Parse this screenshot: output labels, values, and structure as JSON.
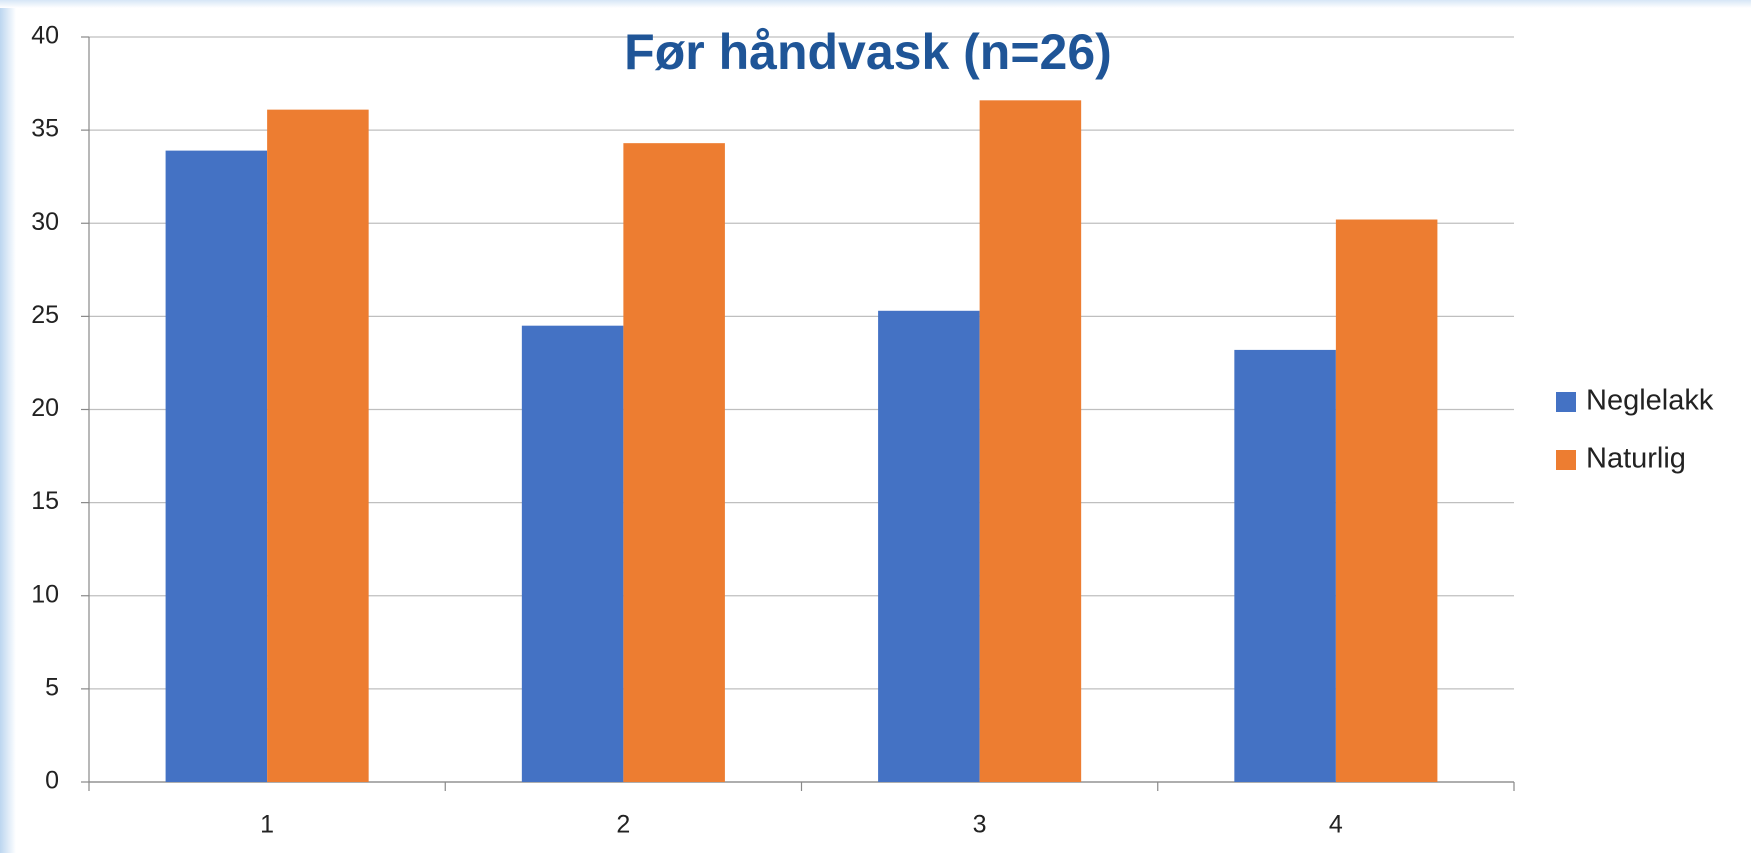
{
  "chart_data": {
    "type": "bar",
    "title": "Før håndvask (n=26)",
    "categories": [
      "1",
      "2",
      "3",
      "4"
    ],
    "series": [
      {
        "name": "Neglelakk",
        "color": "#4472c4",
        "values": [
          33.9,
          24.5,
          25.3,
          23.2
        ]
      },
      {
        "name": "Naturlig",
        "color": "#ed7d31",
        "values": [
          36.1,
          34.3,
          36.6,
          30.2
        ]
      }
    ],
    "ylim": [
      0,
      40
    ],
    "yticks": [
      0,
      5,
      10,
      15,
      20,
      25,
      30,
      35,
      40
    ],
    "grid": true,
    "legend": "right"
  }
}
